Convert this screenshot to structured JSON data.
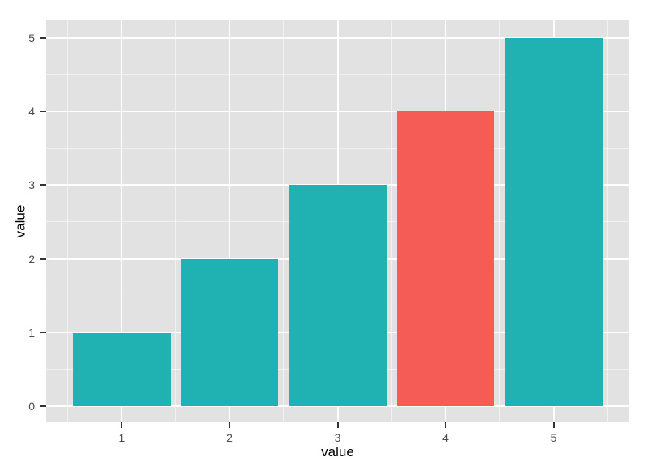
{
  "chart_data": {
    "type": "bar",
    "title": "",
    "xlabel": "value",
    "ylabel": "value",
    "categories": [
      1,
      2,
      3,
      4,
      5
    ],
    "values": [
      1,
      2,
      3,
      4,
      5
    ],
    "bar_width": 0.9,
    "bar_colors": [
      "teal",
      "teal",
      "teal",
      "red",
      "teal"
    ],
    "palette": {
      "teal": "#20B2B2",
      "red": "#F55C56"
    },
    "highlighted_bar": 4,
    "x_ticks": [
      "1",
      "2",
      "3",
      "4",
      "5"
    ],
    "y_ticks": [
      "0",
      "1",
      "2",
      "3",
      "4",
      "5"
    ],
    "xlim": [
      0.3,
      5.7
    ],
    "ylim": [
      -0.22,
      5.24
    ],
    "panel_bg": "#E2E2E2",
    "grid": {
      "major_color": "#FFFFFF",
      "minor_color": "rgba(255,255,255,0.5)",
      "major_y": [
        0,
        1,
        2,
        3,
        4,
        5
      ],
      "minor_y": [
        0.5,
        1.5,
        2.5,
        3.5,
        4.5
      ],
      "major_x": [
        1,
        2,
        3,
        4,
        5
      ],
      "minor_x": [
        0.5,
        1.5,
        2.5,
        3.5,
        4.5,
        5.5
      ]
    },
    "legend": "none",
    "tick_text_color": "#4d4d4d"
  }
}
